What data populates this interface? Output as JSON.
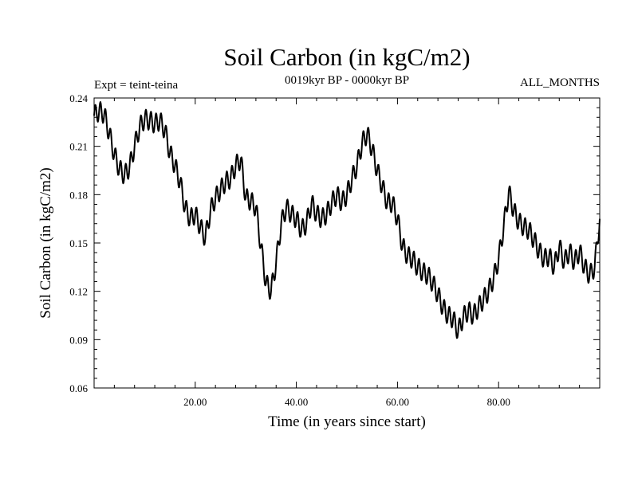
{
  "chart_data": {
    "type": "line",
    "title": "Soil Carbon (in kgC/m2)",
    "subtitle_left": "Expt = teint-teina",
    "subtitle_center": "0019kyr BP - 0000kyr BP",
    "subtitle_right": "ALL_MONTHS",
    "xlabel": "Time (in years since start)",
    "ylabel": "Soil Carbon (in kgC/m2)",
    "xlim": [
      0,
      100
    ],
    "ylim": [
      0.06,
      0.24
    ],
    "xticks": [
      20,
      40,
      60,
      80
    ],
    "xtick_labels": [
      "20.00",
      "40.00",
      "60.00",
      "80.00"
    ],
    "yticks": [
      0.06,
      0.09,
      0.12,
      0.15,
      0.18,
      0.21,
      0.24
    ],
    "ytick_labels": [
      "0.06",
      "0.09",
      "0.12",
      "0.15",
      "0.18",
      "0.21",
      "0.24"
    ],
    "oscillation_period_years": 1,
    "oscillation_amplitude": 0.006,
    "series": [
      {
        "name": "Soil Carbon",
        "x": [
          0,
          1,
          2,
          3,
          4,
          5,
          6,
          7,
          8,
          9,
          10,
          11,
          12,
          13,
          14,
          15,
          16,
          17,
          18,
          19,
          20,
          21,
          22,
          23,
          24,
          25,
          26,
          27,
          28,
          29,
          30,
          31,
          32,
          33,
          34,
          35,
          36,
          37,
          38,
          39,
          40,
          41,
          42,
          43,
          44,
          45,
          46,
          47,
          48,
          49,
          50,
          51,
          52,
          53,
          54,
          55,
          56,
          57,
          58,
          59,
          60,
          61,
          62,
          63,
          64,
          65,
          66,
          67,
          68,
          69,
          70,
          71,
          72,
          73,
          74,
          75,
          76,
          77,
          78,
          79,
          80,
          81,
          82,
          83,
          84,
          85,
          86,
          87,
          88,
          89,
          90,
          91,
          92,
          93,
          94,
          95,
          96,
          97,
          98,
          99,
          100
        ],
        "y": [
          0.229,
          0.232,
          0.23,
          0.218,
          0.205,
          0.196,
          0.192,
          0.197,
          0.21,
          0.222,
          0.227,
          0.226,
          0.224,
          0.226,
          0.22,
          0.206,
          0.198,
          0.188,
          0.172,
          0.165,
          0.168,
          0.16,
          0.153,
          0.17,
          0.178,
          0.183,
          0.188,
          0.19,
          0.198,
          0.202,
          0.178,
          0.176,
          0.172,
          0.148,
          0.125,
          0.12,
          0.138,
          0.162,
          0.172,
          0.168,
          0.165,
          0.158,
          0.162,
          0.175,
          0.168,
          0.165,
          0.168,
          0.175,
          0.18,
          0.175,
          0.18,
          0.19,
          0.198,
          0.212,
          0.218,
          0.208,
          0.195,
          0.185,
          0.175,
          0.175,
          0.165,
          0.148,
          0.142,
          0.14,
          0.135,
          0.132,
          0.13,
          0.125,
          0.118,
          0.11,
          0.105,
          0.103,
          0.095,
          0.104,
          0.108,
          0.105,
          0.11,
          0.115,
          0.12,
          0.128,
          0.14,
          0.16,
          0.182,
          0.17,
          0.163,
          0.16,
          0.158,
          0.152,
          0.145,
          0.14,
          0.142,
          0.135,
          0.148,
          0.138,
          0.145,
          0.138,
          0.145,
          0.135,
          0.13,
          0.135,
          0.165
        ]
      }
    ]
  }
}
